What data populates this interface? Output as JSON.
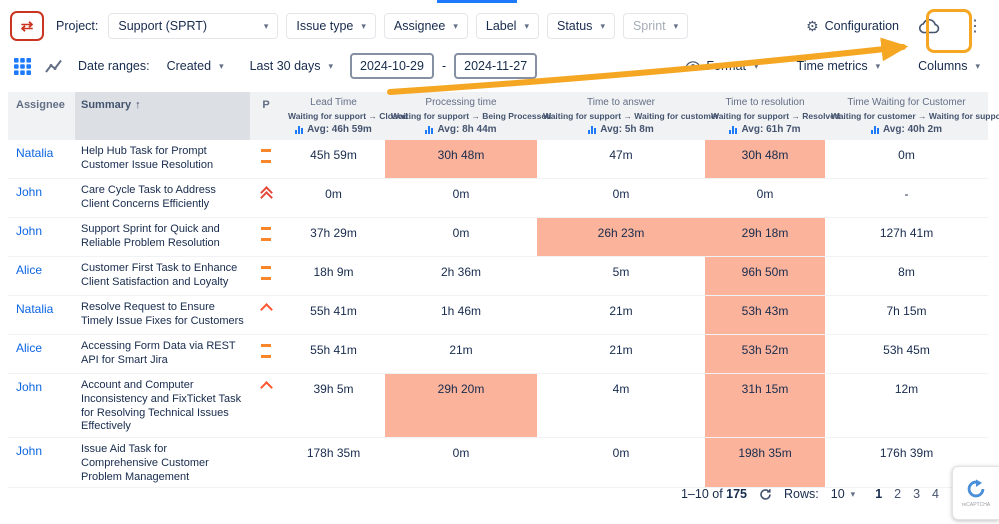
{
  "colors": {
    "annotation": "#F5A623",
    "cell_highlight": "#FBB39B",
    "link": "#0C66E4",
    "header_bg": "#F1F2F4",
    "summary_header_bg": "#DCDFE4",
    "accent_blue": "#1D7AFC"
  },
  "topbar": {
    "project_label": "Project:",
    "project_value": "Support (SPRT)",
    "filters": [
      {
        "key": "issue-type",
        "label": "Issue type",
        "disabled": false
      },
      {
        "key": "assignee",
        "label": "Assignee",
        "disabled": false
      },
      {
        "key": "label",
        "label": "Label",
        "disabled": false
      },
      {
        "key": "status",
        "label": "Status",
        "disabled": false
      },
      {
        "key": "sprint",
        "label": "Sprint",
        "disabled": true
      }
    ],
    "configuration_label": "Configuration"
  },
  "controls": {
    "date_ranges_label": "Date ranges:",
    "date_field_value": "Created",
    "preset_value": "Last 30 days",
    "date_from": "2024-10-29",
    "date_separator": "-",
    "date_to": "2024-11-27",
    "format_label": "Format",
    "time_metrics_label": "Time metrics",
    "columns_label": "Columns"
  },
  "table": {
    "assignee_header": "Assignee",
    "summary_header": "Summary",
    "sort_arrow": "↑",
    "p_header": "P",
    "metric_columns": [
      {
        "key": "lead-time",
        "label": "Lead Time",
        "transition": "Waiting for support → Closed",
        "avg": "Avg: 46h 59m"
      },
      {
        "key": "processing-time",
        "label": "Processing time",
        "transition": "Waiting for support → Being Processed",
        "avg": "Avg: 8h 44m"
      },
      {
        "key": "time-to-answer",
        "label": "Time to answer",
        "transition": "Waiting for support → Waiting for customer",
        "avg": "Avg: 5h 8m"
      },
      {
        "key": "time-to-resolution",
        "label": "Time to resolution",
        "transition": "Waiting for support → Resolved",
        "avg": "Avg: 61h 7m"
      },
      {
        "key": "time-waiting-for-customer",
        "label": "Time Waiting for Customer",
        "transition": "Waiting for customer → Waiting for support",
        "avg": "Avg: 40h 2m"
      }
    ],
    "rows": [
      {
        "assignee": "Natalia",
        "summary": "Help Hub Task for Prompt Customer Issue Resolution",
        "priority": "medium",
        "cells": [
          {
            "v": "45h 59m",
            "hl": false
          },
          {
            "v": "30h 48m",
            "hl": true
          },
          {
            "v": "47m",
            "hl": false
          },
          {
            "v": "30h 48m",
            "hl": true
          },
          {
            "v": "0m",
            "hl": false
          }
        ]
      },
      {
        "assignee": "John",
        "summary": "Care Cycle Task to Address Client Concerns Efficiently",
        "priority": "highest",
        "cells": [
          {
            "v": "0m",
            "hl": false
          },
          {
            "v": "0m",
            "hl": false
          },
          {
            "v": "0m",
            "hl": false
          },
          {
            "v": "0m",
            "hl": false
          },
          {
            "v": "-",
            "hl": false
          }
        ]
      },
      {
        "assignee": "John",
        "summary": "Support Sprint for Quick and Reliable Problem Resolution",
        "priority": "medium",
        "cells": [
          {
            "v": "37h 29m",
            "hl": false
          },
          {
            "v": "0m",
            "hl": false
          },
          {
            "v": "26h 23m",
            "hl": true
          },
          {
            "v": "29h 18m",
            "hl": true
          },
          {
            "v": "127h 41m",
            "hl": false
          }
        ]
      },
      {
        "assignee": "Alice",
        "summary": "Customer First Task to Enhance Client Satisfaction and Loyalty",
        "priority": "medium",
        "cells": [
          {
            "v": "18h 9m",
            "hl": false
          },
          {
            "v": "2h 36m",
            "hl": false
          },
          {
            "v": "5m",
            "hl": false
          },
          {
            "v": "96h 50m",
            "hl": true
          },
          {
            "v": "8m",
            "hl": false
          }
        ]
      },
      {
        "assignee": "Natalia",
        "summary": "Resolve Request to Ensure Timely Issue Fixes for Customers",
        "priority": "high",
        "cells": [
          {
            "v": "55h 41m",
            "hl": false
          },
          {
            "v": "1h 46m",
            "hl": false
          },
          {
            "v": "21m",
            "hl": false
          },
          {
            "v": "53h 43m",
            "hl": true
          },
          {
            "v": "7h 15m",
            "hl": false
          }
        ]
      },
      {
        "assignee": "Alice",
        "summary": "Accessing Form Data via REST API for Smart Jira",
        "priority": "medium",
        "cells": [
          {
            "v": "55h 41m",
            "hl": false
          },
          {
            "v": "21m",
            "hl": false
          },
          {
            "v": "21m",
            "hl": false
          },
          {
            "v": "53h 52m",
            "hl": true
          },
          {
            "v": "53h 45m",
            "hl": false
          }
        ]
      },
      {
        "assignee": "John",
        "summary": "Account and Computer Inconsistency and FixTicket Task for Resolving Technical Issues Effectively",
        "priority": "high",
        "cells": [
          {
            "v": "39h 5m",
            "hl": false
          },
          {
            "v": "29h 20m",
            "hl": true
          },
          {
            "v": "4m",
            "hl": false
          },
          {
            "v": "31h 15m",
            "hl": true
          },
          {
            "v": "12m",
            "hl": false
          }
        ]
      },
      {
        "assignee": "John",
        "summary": "Issue Aid Task for Comprehensive Customer Problem Management",
        "priority": "none",
        "cells": [
          {
            "v": "178h 35m",
            "hl": false
          },
          {
            "v": "0m",
            "hl": false
          },
          {
            "v": "0m",
            "hl": false
          },
          {
            "v": "198h 35m",
            "hl": true
          },
          {
            "v": "176h 39m",
            "hl": false
          }
        ]
      }
    ]
  },
  "footer": {
    "range_prefix": "1–10 of ",
    "total": "175",
    "rows_label": "Rows:",
    "rows_per_page": "10",
    "pages": [
      "1",
      "2",
      "3",
      "4"
    ],
    "current_page": "1"
  },
  "recaptcha": {
    "label": "reCAPTCHA"
  },
  "priority_icon_names": {
    "medium": "medium-priority-icon",
    "high": "high-priority-icon",
    "highest": "highest-priority-icon"
  }
}
